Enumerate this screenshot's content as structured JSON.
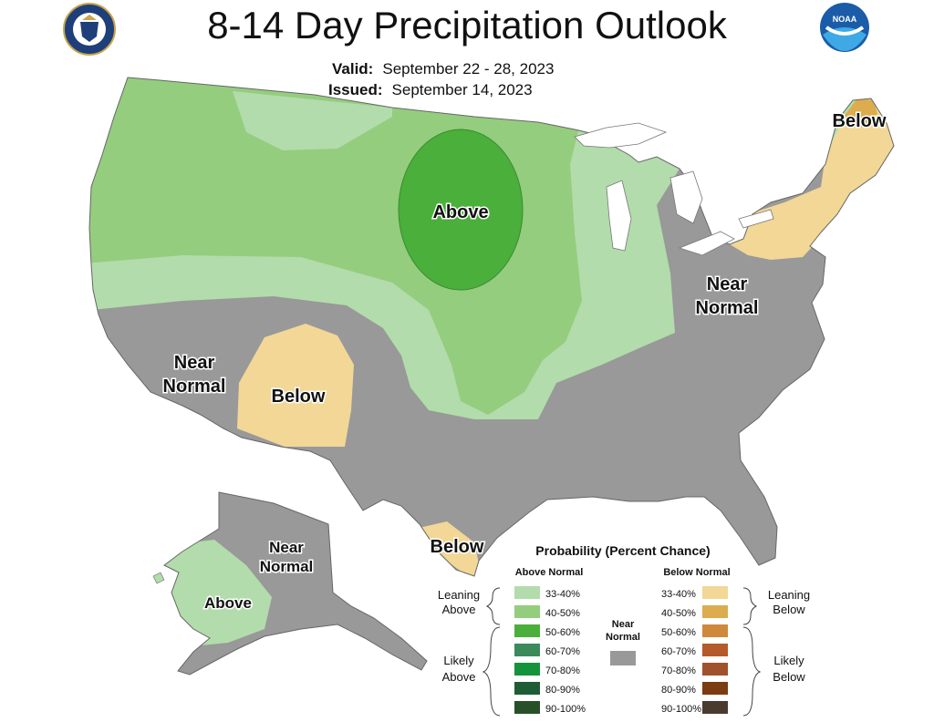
{
  "title": "8-14 Day Precipitation Outlook",
  "valid_label": "Valid:",
  "valid_value": "September 22 - 28, 2023",
  "issued_label": "Issued:",
  "issued_value": "September 14, 2023",
  "map_labels": {
    "plains_above": "Above",
    "northeast_below": "Below",
    "ohio_valley_near": [
      "Near",
      "Normal"
    ],
    "southwest_near": [
      "Near",
      "Normal"
    ],
    "four_corners_below": "Below",
    "south_texas_below": "Below",
    "alaska_near": [
      "Near",
      "Normal"
    ],
    "alaska_above": "Above"
  },
  "legend": {
    "title": "Probability (Percent Chance)",
    "above_header": "Above Normal",
    "below_header": "Below Normal",
    "near_label": [
      "Near",
      "Normal"
    ],
    "leaning_above": [
      "Leaning",
      "Above"
    ],
    "likely_above": [
      "Likely",
      "Above"
    ],
    "leaning_below": [
      "Leaning",
      "Below"
    ],
    "likely_below": [
      "Likely",
      "Below"
    ],
    "above_bins": [
      {
        "label": "33-40%",
        "color": "#b2dcab"
      },
      {
        "label": "40-50%",
        "color": "#94cd7e"
      },
      {
        "label": "50-60%",
        "color": "#4aaf3b"
      },
      {
        "label": "60-70%",
        "color": "#3a8a5c"
      },
      {
        "label": "70-80%",
        "color": "#14933a"
      },
      {
        "label": "80-90%",
        "color": "#1e5c36"
      },
      {
        "label": "90-100%",
        "color": "#285028"
      }
    ],
    "below_bins": [
      {
        "label": "33-40%",
        "color": "#f2d796"
      },
      {
        "label": "40-50%",
        "color": "#dcac4e"
      },
      {
        "label": "50-60%",
        "color": "#d0893c"
      },
      {
        "label": "60-70%",
        "color": "#b55a2a"
      },
      {
        "label": "70-80%",
        "color": "#a0522d"
      },
      {
        "label": "80-90%",
        "color": "#7a3c10"
      },
      {
        "label": "90-100%",
        "color": "#4a3a30"
      }
    ],
    "near_color": "#999999"
  },
  "icons": {
    "left_logo": "commerce-seal-icon",
    "right_logo": "noaa-logo-icon"
  }
}
